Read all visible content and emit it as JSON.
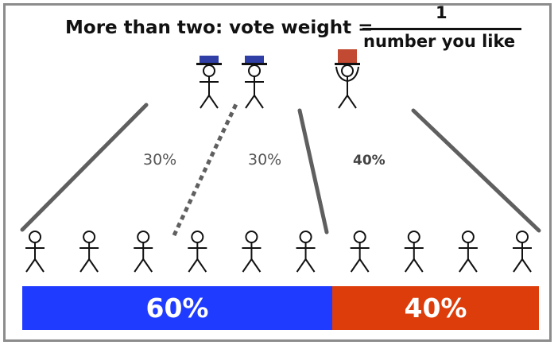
{
  "title": "More than two: vote weight =",
  "formula": {
    "numerator": "1",
    "denominator": "number you like"
  },
  "edge_labels": {
    "left": "30%",
    "middle": "30%",
    "right": "40%"
  },
  "result_bar": {
    "blue_label": "60%",
    "red_label": "40%",
    "blue_share": 0.6,
    "red_share": 0.4
  },
  "colors": {
    "blue": "#1f3bff",
    "red": "#dd3d0a",
    "candidate_blue": "#2f3fa6",
    "candidate_red": "#c24a32",
    "line": "#5f5f5f",
    "frame": "#8c8c8c"
  },
  "candidates": [
    "blue",
    "blue",
    "red"
  ],
  "voter_count": 10
}
